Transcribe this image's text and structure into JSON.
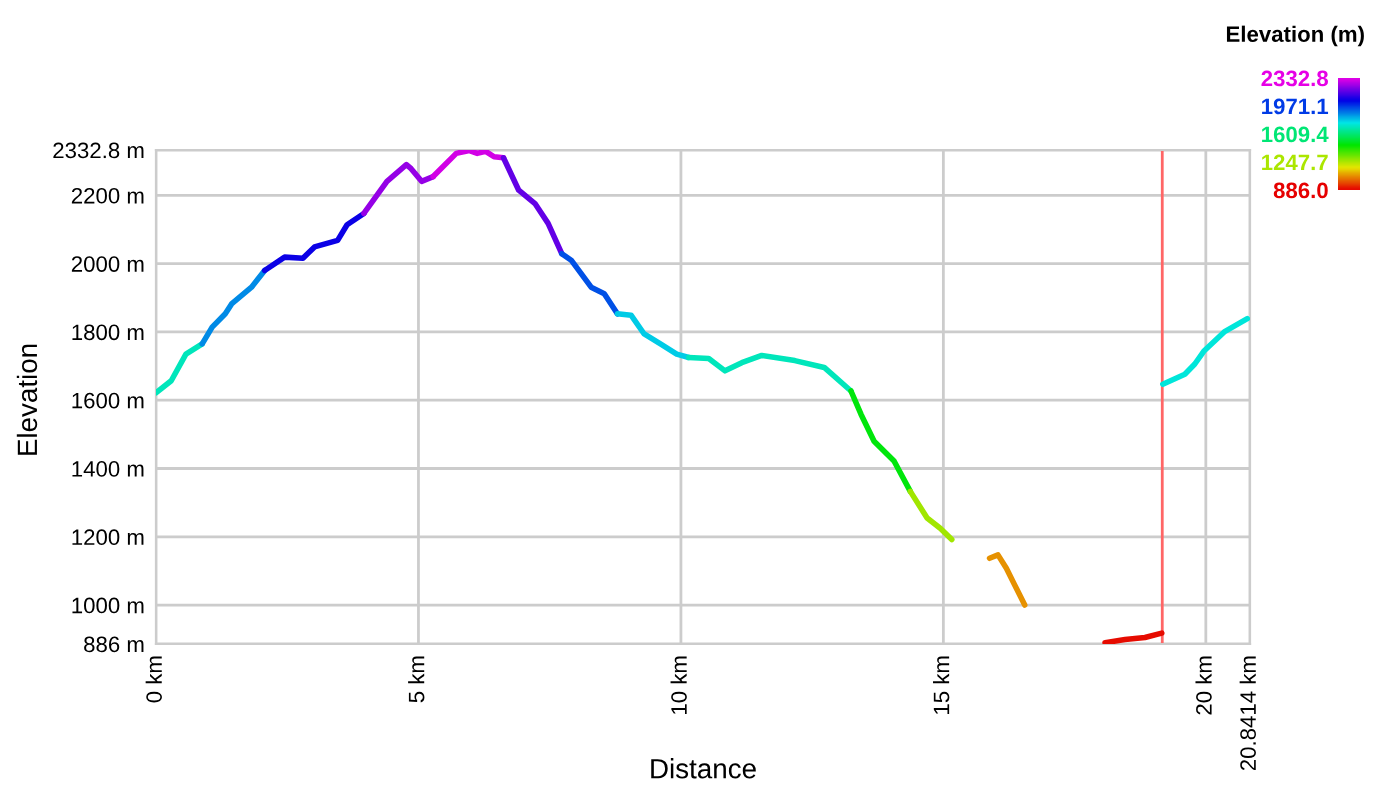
{
  "chart_data": {
    "type": "line",
    "xlabel": "Distance",
    "ylabel": "Elevation",
    "clabel": "Elevation (m)",
    "series": [
      {
        "color": "#00e6bb",
        "x": [
          0,
          0.29,
          0.57,
          0.88
        ],
        "values": [
          1622,
          1657,
          1735,
          1765
        ]
      },
      {
        "color": "#008ae6",
        "x": [
          0.88,
          1.07,
          1.32,
          1.44,
          1.82,
          2.07
        ],
        "values": [
          1765,
          1814,
          1853,
          1882,
          1931,
          1980
        ]
      },
      {
        "color": "#0b00e6",
        "x": [
          2.07,
          2.45,
          2.8,
          3.02,
          3.46,
          3.64,
          3.96
        ],
        "values": [
          1980,
          2019,
          2016,
          2049,
          2068,
          2114,
          2147
        ]
      },
      {
        "color": "#9500e6",
        "x": [
          3.96,
          4.4,
          4.77,
          4.86,
          5.06,
          5.28
        ],
        "values": [
          2147,
          2241,
          2290,
          2278,
          2241,
          2255
        ]
      },
      {
        "color": "#d200e6",
        "x": [
          5.28,
          5.72,
          5.97,
          6.12,
          6.28,
          6.44,
          6.62
        ],
        "values": [
          2255,
          2323,
          2331,
          2323,
          2329,
          2313,
          2310
        ]
      },
      {
        "color": "#6300e6",
        "x": [
          6.62,
          6.91,
          7.22,
          7.47,
          7.73
        ],
        "values": [
          2310,
          2215,
          2176,
          2118,
          2029
        ]
      },
      {
        "color": "#0050e6",
        "x": [
          7.73,
          7.91,
          8.29,
          8.54,
          8.79
        ],
        "values": [
          2029,
          2010,
          1931,
          1912,
          1853
        ]
      },
      {
        "color": "#00cbe6",
        "x": [
          8.79,
          9.05,
          9.3,
          9.61,
          9.92,
          10.15
        ],
        "values": [
          1853,
          1849,
          1794,
          1765,
          1735,
          1725
        ]
      },
      {
        "color": "#00e6bb",
        "x": [
          10.15,
          10.53,
          10.84,
          11.16,
          11.54,
          12.17,
          12.73,
          13.24
        ],
        "values": [
          1725,
          1722,
          1686,
          1710,
          1731,
          1716,
          1696,
          1627
        ]
      },
      {
        "color": "#00e60b",
        "x": [
          13.24,
          13.43,
          13.68,
          14.06,
          14.37
        ],
        "values": [
          1627,
          1559,
          1480,
          1422,
          1333
        ]
      },
      {
        "color": "#a1e600",
        "x": [
          14.37,
          14.69,
          14.94,
          15.16
        ],
        "values": [
          1333,
          1255,
          1225,
          1192
        ]
      },
      {
        "color": "#e69100",
        "x": [
          15.88,
          16.04,
          16.2,
          16.39,
          16.55
        ],
        "values": [
          1137,
          1147,
          1108,
          1049,
          1000
        ]
      },
      {
        "color": "#e60b00",
        "x": [
          18.08,
          18.46,
          18.84,
          19.16
        ],
        "values": [
          890,
          899,
          905,
          918
        ]
      },
      {
        "color": "#00e6da",
        "x": [
          19.18,
          19.6,
          19.79,
          19.97,
          20.35,
          20.79
        ],
        "values": [
          1647,
          1676,
          1706,
          1745,
          1800,
          1839
        ]
      }
    ],
    "xlim": [
      0,
      20.8414
    ],
    "xticks": [
      {
        "value": 0,
        "label": "0 km"
      },
      {
        "value": 5,
        "label": "5 km"
      },
      {
        "value": 10,
        "label": "10 km"
      },
      {
        "value": 15,
        "label": "15 km"
      },
      {
        "value": 20,
        "label": "20 km"
      },
      {
        "value": 20.8414,
        "label": "20.8414 km"
      }
    ],
    "ylim": [
      886,
      2332.8
    ],
    "yticks": [
      {
        "value": 886,
        "label": "886 m"
      },
      {
        "value": 1000,
        "label": "1000 m"
      },
      {
        "value": 1200,
        "label": "1200 m"
      },
      {
        "value": 1400,
        "label": "1400 m"
      },
      {
        "value": 1600,
        "label": "1600 m"
      },
      {
        "value": 1800,
        "label": "1800 m"
      },
      {
        "value": 2000,
        "label": "2000 m"
      },
      {
        "value": 2200,
        "label": "2200 m"
      },
      {
        "value": 2332.8,
        "label": "2332.8 m"
      }
    ],
    "clim": [
      886.0,
      2332.8
    ],
    "cticks": [
      {
        "value": 2332.8,
        "label": "2332.8"
      },
      {
        "value": 1971.1,
        "label": "1971.1"
      },
      {
        "value": 1609.4,
        "label": "1609.4"
      },
      {
        "value": 1247.7,
        "label": "1247.7"
      },
      {
        "value": 886.0,
        "label": "886.0"
      }
    ],
    "ref_lines": [
      {
        "axis": "x",
        "value": 19.17,
        "color": "#ff6666"
      }
    ],
    "grid": true,
    "marker": "none",
    "line_style": "solid"
  }
}
